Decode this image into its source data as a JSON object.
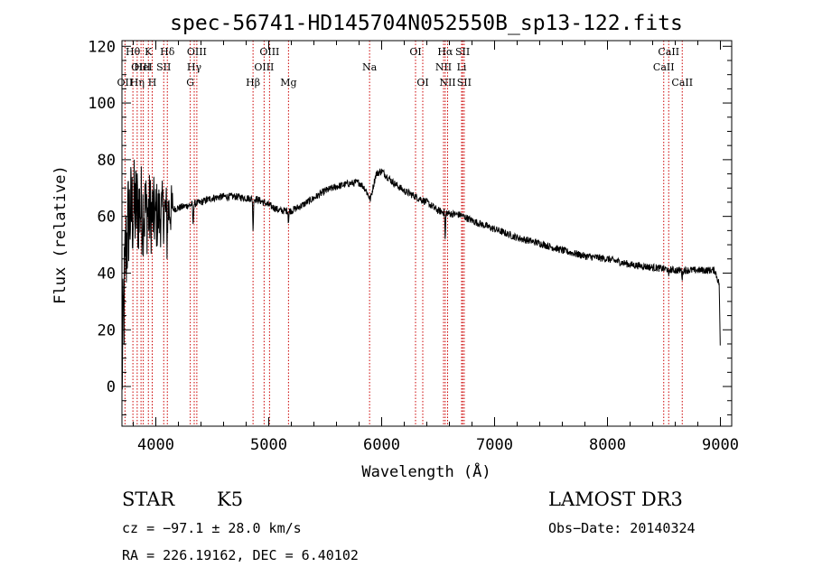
{
  "chart_data": {
    "type": "line",
    "title": "spec-56741-HD145704N052550B_sp13-122.fits",
    "xlabel": "Wavelength (Å)",
    "ylabel": "Flux (relative)",
    "xlim": [
      3700,
      9100
    ],
    "ylim": [
      -14,
      122
    ],
    "xticks": [
      4000,
      5000,
      6000,
      7000,
      8000,
      9000
    ],
    "yticks": [
      0,
      20,
      40,
      60,
      80,
      100,
      120
    ],
    "continuum_knots": [
      [
        3700,
        3
      ],
      [
        3710,
        18
      ],
      [
        3730,
        45
      ],
      [
        3760,
        60
      ],
      [
        3800,
        62
      ],
      [
        3850,
        63
      ],
      [
        3900,
        62
      ],
      [
        3950,
        61
      ],
      [
        4000,
        60
      ],
      [
        4100,
        62
      ],
      [
        4200,
        63
      ],
      [
        4300,
        64
      ],
      [
        4400,
        65
      ],
      [
        4500,
        66.5
      ],
      [
        4600,
        67
      ],
      [
        4700,
        67
      ],
      [
        4800,
        66.5
      ],
      [
        4900,
        66
      ],
      [
        5000,
        64
      ],
      [
        5100,
        62
      ],
      [
        5200,
        62
      ],
      [
        5300,
        64
      ],
      [
        5400,
        66.5
      ],
      [
        5500,
        69
      ],
      [
        5600,
        70.5
      ],
      [
        5700,
        71.5
      ],
      [
        5800,
        72
      ],
      [
        5850,
        70
      ],
      [
        5900,
        66
      ],
      [
        5950,
        75
      ],
      [
        6000,
        76
      ],
      [
        6100,
        72
      ],
      [
        6200,
        69
      ],
      [
        6300,
        67
      ],
      [
        6400,
        65
      ],
      [
        6500,
        62
      ],
      [
        6600,
        61
      ],
      [
        6700,
        60.5
      ],
      [
        6800,
        58.5
      ],
      [
        7000,
        55.5
      ],
      [
        7200,
        52.5
      ],
      [
        7400,
        50.5
      ],
      [
        7600,
        48
      ],
      [
        7800,
        46
      ],
      [
        8000,
        45
      ],
      [
        8200,
        43
      ],
      [
        8400,
        42
      ],
      [
        8600,
        41
      ],
      [
        8800,
        41
      ],
      [
        8950,
        41
      ],
      [
        8990,
        36
      ],
      [
        9000,
        8
      ]
    ],
    "absorption_lines": [
      {
        "x": 4861,
        "depth": 12
      },
      {
        "x": 4330,
        "depth": 8
      },
      {
        "x": 4100,
        "depth": 10
      },
      {
        "x": 6563,
        "depth": 10
      },
      {
        "x": 5175,
        "depth": 4
      },
      {
        "x": 8542,
        "depth": 3
      },
      {
        "x": 8662,
        "depth": 3
      }
    ],
    "noise": {
      "blue_end": 4150,
      "blue_amp": 22,
      "red_amp": 1.3
    },
    "reference_lines": [
      {
        "label": "OII",
        "x": 3727,
        "row": 3
      },
      {
        "label": "Hθ",
        "x": 3797,
        "row": 1
      },
      {
        "label": "OIII",
        "x": 3869,
        "row": 2
      },
      {
        "label": "Hη",
        "x": 3835,
        "row": 3
      },
      {
        "label": "HeI",
        "x": 3889,
        "row": 2
      },
      {
        "label": "K",
        "x": 3934,
        "row": 1
      },
      {
        "label": "H",
        "x": 3968,
        "row": 3
      },
      {
        "label": "SII",
        "x": 4070,
        "row": 2
      },
      {
        "label": "Hδ",
        "x": 4102,
        "row": 1
      },
      {
        "label": "OIII",
        "x": 4363,
        "row": 1
      },
      {
        "label": "Hγ",
        "x": 4340,
        "row": 2
      },
      {
        "label": "G",
        "x": 4305,
        "row": 3
      },
      {
        "label": "Hβ",
        "x": 4861,
        "row": 3
      },
      {
        "label": "OIII",
        "x": 5007,
        "row": 1
      },
      {
        "label": "OIII",
        "x": 4959,
        "row": 2
      },
      {
        "label": "Mg",
        "x": 5175,
        "row": 3
      },
      {
        "label": "Na",
        "x": 5893,
        "row": 2
      },
      {
        "label": "OI",
        "x": 6300,
        "row": 1
      },
      {
        "label": "OI",
        "x": 6364,
        "row": 3
      },
      {
        "label": "Hα",
        "x": 6563,
        "row": 1
      },
      {
        "label": "NII",
        "x": 6548,
        "row": 2
      },
      {
        "label": "NII",
        "x": 6584,
        "row": 3
      },
      {
        "label": "SII",
        "x": 6717,
        "row": 1
      },
      {
        "label": "Li",
        "x": 6708,
        "row": 2
      },
      {
        "label": "SII",
        "x": 6731,
        "row": 3
      },
      {
        "label": "CaII",
        "x": 8542,
        "row": 1
      },
      {
        "label": "CaII",
        "x": 8498,
        "row": 2
      },
      {
        "label": "CaII",
        "x": 8662,
        "row": 3
      }
    ]
  },
  "info": {
    "class_text": "STAR",
    "subclass_text": "K5",
    "survey_text": "LAMOST DR3",
    "cz_text": "cz = −97.1 ± 28.0 km/s",
    "obs_date_text": "Obs−Date: 20140324",
    "radec_text": "RA = 226.19162, DEC =   6.40102"
  },
  "colors": {
    "reference_line": "#cc0000",
    "spectrum": "#000000"
  }
}
